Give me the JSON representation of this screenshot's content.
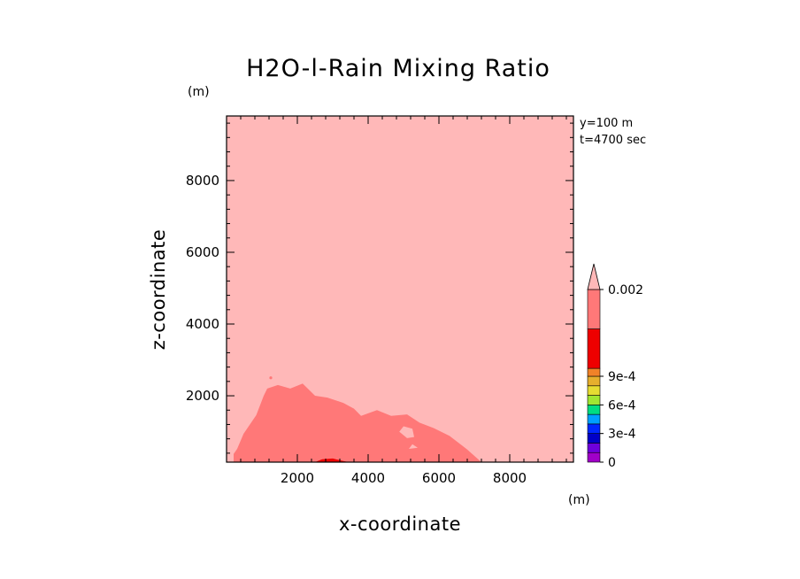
{
  "chart_data": {
    "type": "contour",
    "title": "H2O-l-Rain Mixing Ratio",
    "xlabel": "x-coordinate",
    "ylabel": "z-coordinate",
    "x_unit": "(m)",
    "y_unit": "(m)",
    "annotations": [
      "y=100 m",
      "t=4700 sec"
    ],
    "xlim": [
      0,
      9800
    ],
    "ylim": [
      150,
      9800
    ],
    "x_ticks": [
      2000,
      4000,
      6000,
      8000
    ],
    "y_ticks": [
      2000,
      4000,
      6000,
      8000
    ],
    "x_tick_labels": [
      "2000",
      "4000",
      "6000",
      "8000"
    ],
    "y_tick_labels": [
      "2000",
      "4000",
      "6000",
      "8000"
    ],
    "background_color": "#ffb8b8",
    "regions": [
      {
        "name": "high-rain-region",
        "color": "#ff7878",
        "points": [
          [
            300,
            520
          ],
          [
            480,
            940
          ],
          [
            840,
            1460
          ],
          [
            1050,
            2000
          ],
          [
            1150,
            2200
          ],
          [
            1450,
            2300
          ],
          [
            1800,
            2200
          ],
          [
            2150,
            2340
          ],
          [
            2500,
            2000
          ],
          [
            2850,
            1950
          ],
          [
            3300,
            1800
          ],
          [
            3600,
            1640
          ],
          [
            3800,
            1440
          ],
          [
            4250,
            1600
          ],
          [
            4650,
            1440
          ],
          [
            5100,
            1480
          ],
          [
            5450,
            1250
          ],
          [
            5850,
            1100
          ],
          [
            6300,
            880
          ],
          [
            6800,
            500
          ],
          [
            7200,
            150
          ],
          [
            200,
            150
          ],
          [
            200,
            380
          ]
        ]
      },
      {
        "name": "mixing-ratio-hole-1",
        "color": "#ffb8b8",
        "points": [
          [
            4880,
            1000
          ],
          [
            5100,
            820
          ],
          [
            5300,
            850
          ],
          [
            5250,
            1080
          ],
          [
            5000,
            1150
          ]
        ]
      },
      {
        "name": "mixing-ratio-hole-2",
        "color": "#ffb8b8",
        "points": [
          [
            5150,
            520
          ],
          [
            5400,
            550
          ],
          [
            5250,
            650
          ]
        ]
      },
      {
        "name": "peak-rain-region",
        "color": "#ee0000",
        "points": [
          [
            2500,
            150
          ],
          [
            2700,
            230
          ],
          [
            3000,
            250
          ],
          [
            3300,
            180
          ],
          [
            3450,
            150
          ]
        ]
      }
    ],
    "colorbar": {
      "min": 0,
      "max": 0.002,
      "extend": "max",
      "labels": [
        {
          "value": 0,
          "text": "0"
        },
        {
          "value": 0.0003,
          "text": "3e-4"
        },
        {
          "value": 0.0006,
          "text": "6e-4"
        },
        {
          "value": 0.0009,
          "text": "9e-4"
        },
        {
          "value": 0.002,
          "text": "0.002"
        }
      ],
      "bins": [
        {
          "from": 0.0,
          "to": 0.0001,
          "color": "#a000c8"
        },
        {
          "from": 0.0001,
          "to": 0.0002,
          "color": "#6e00dc"
        },
        {
          "from": 0.0002,
          "to": 0.0003,
          "color": "#0000c8"
        },
        {
          "from": 0.0003,
          "to": 0.0004,
          "color": "#0028ff"
        },
        {
          "from": 0.0004,
          "to": 0.0005,
          "color": "#00a0ff"
        },
        {
          "from": 0.0005,
          "to": 0.0006,
          "color": "#00dc82"
        },
        {
          "from": 0.0006,
          "to": 0.0007,
          "color": "#a0e632"
        },
        {
          "from": 0.0007,
          "to": 0.0008,
          "color": "#e6dc32"
        },
        {
          "from": 0.0008,
          "to": 0.0009,
          "color": "#e6af2d"
        },
        {
          "from": 0.0009,
          "to": 0.001,
          "color": "#f08228"
        },
        {
          "from": 0.001,
          "to": 0.0015,
          "color": "#ee0000"
        },
        {
          "from": 0.0015,
          "to": 0.002,
          "color": "#ff7878"
        }
      ],
      "over_color": "#ffb8b8"
    }
  }
}
